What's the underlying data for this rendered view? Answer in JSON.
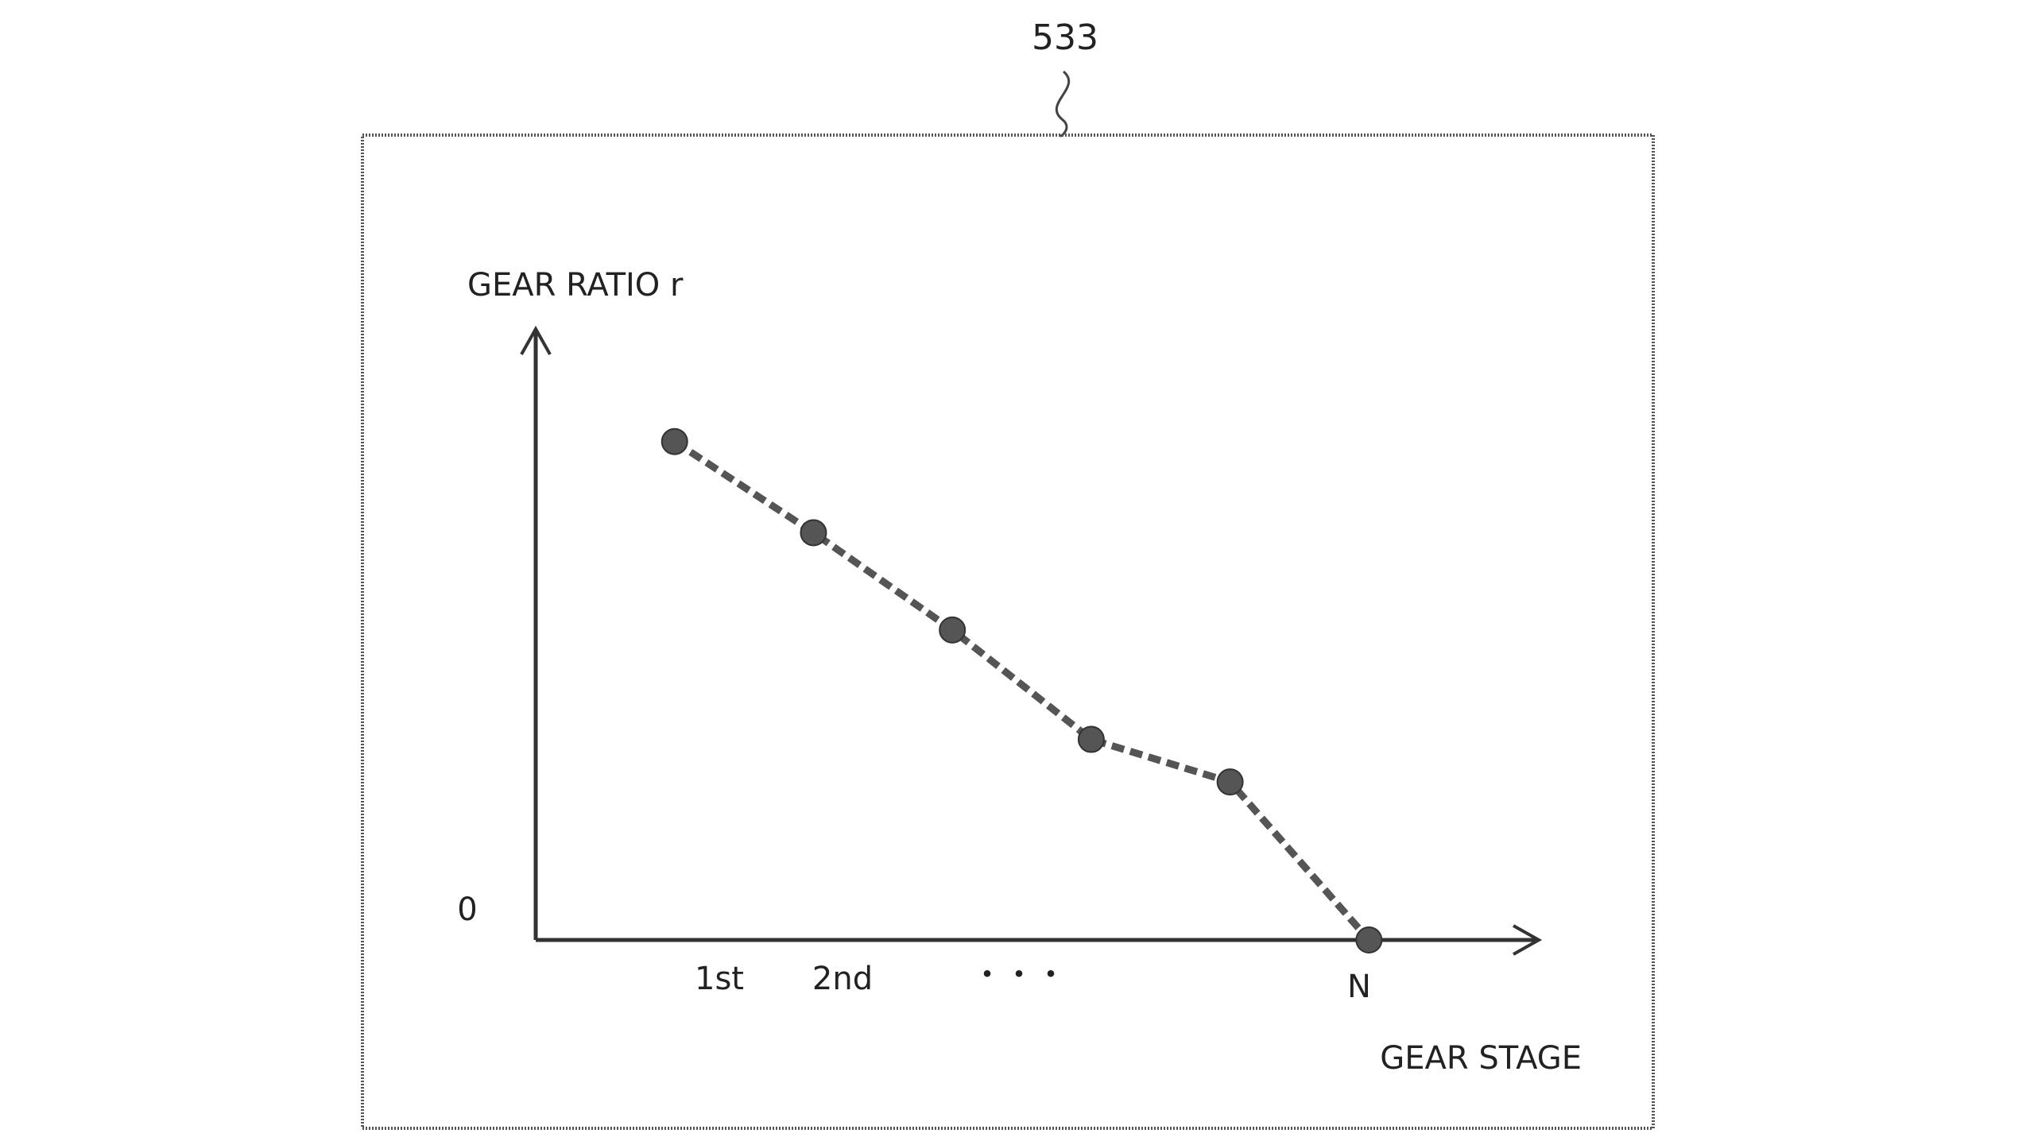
{
  "figure": {
    "reference_numeral": "533"
  },
  "chart_data": {
    "type": "line",
    "xlabel": "GEAR STAGE",
    "ylabel": "GEAR RATIO r",
    "y_origin_label": "0",
    "x_tick_labels": [
      "1st",
      "2nd",
      "・・・",
      "N"
    ],
    "series": [
      {
        "x": [
          1,
          2,
          3,
          4,
          5,
          6
        ],
        "y": [
          0.82,
          0.67,
          0.51,
          0.33,
          0.26,
          0.0
        ]
      }
    ],
    "xlim": [
      0,
      7.2
    ],
    "ylim": [
      0,
      1.0
    ],
    "line_style": "dashed",
    "marker": "circle",
    "grid": false,
    "legend": "none",
    "colors": {
      "line": "#555555",
      "marker": "#555555",
      "axis": "#333333"
    }
  }
}
